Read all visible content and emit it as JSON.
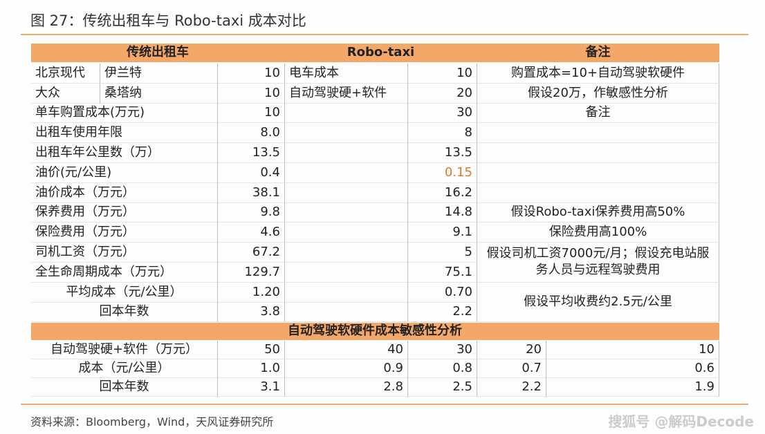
{
  "title": "图 27：传统出租车与 Robo-taxi 成本对比",
  "table": {
    "header": [
      "传统出租车",
      "Robo-taxi",
      "备注"
    ],
    "rows": [
      {
        "label": [
          "北京现代",
          "伊兰特"
        ],
        "traditional": "10",
        "robo_label": "电车成本",
        "robo": "10",
        "note": "购置成本=10+自动驾驶软硬件"
      },
      {
        "label": [
          "大众",
          "桑塔纳"
        ],
        "traditional": "10",
        "robo_label": "自动驾驶硬+软件",
        "robo": "20",
        "note": "假设20万，作敏感性分析"
      },
      {
        "label": "单车购置成本(万元)",
        "traditional": "10",
        "robo": "30",
        "note": "备注"
      },
      {
        "label": "出租车使用年限",
        "traditional": "8.0",
        "robo": "8"
      },
      {
        "label": "出租车年公里数（万）",
        "traditional": "13.5",
        "robo": "13.5"
      },
      {
        "label": "油价(元/公里)",
        "traditional": "0.4",
        "robo": "0.15",
        "robo_color": "#e07b2a"
      },
      {
        "label": "油价成本（万元）",
        "traditional": "38.1",
        "robo": "16.2"
      },
      {
        "label": "保养费用（万元）",
        "traditional": "9.8",
        "robo": "14.8",
        "note": "假设Robo-taxi保养费用高50%"
      },
      {
        "label": "保险费用（万元）",
        "traditional": "4.6",
        "robo": "9.1",
        "note": "保险费用高100%"
      },
      {
        "label": "司机工资（万元）",
        "traditional": "67.2",
        "robo": "5",
        "note": "假设司机工资7000元/月；假设充电站服务人员与远程驾驶费用"
      },
      {
        "label": "全生命周期成本（万元）",
        "traditional": "129.7",
        "robo": "75.1"
      },
      {
        "label": "平均成本（元/公里）",
        "traditional": "1.20",
        "robo": "0.70",
        "note": "假设平均收费约2.5元/公里"
      },
      {
        "label": "回本年数",
        "traditional": "3.8",
        "robo": "2.2"
      }
    ],
    "sensitivity_title": "自动驾驶软硬件成本敏感性分析",
    "sensitivity_rows": [
      {
        "label": "自动驾驶硬+软件（万元）",
        "values": [
          "50",
          "40",
          "30",
          "20",
          "10"
        ]
      },
      {
        "label": "成本（元/公里）",
        "values": [
          "1.0",
          "0.9",
          "0.8",
          "0.7",
          "0.6"
        ]
      },
      {
        "label": "回本年数",
        "values": [
          "3.1",
          "2.8",
          "2.5",
          "2.2",
          "1.9"
        ]
      }
    ]
  },
  "source": "资料来源：Bloomberg，Wind，天风证券研究所",
  "watermark": "搜狐号 @解码Decode"
}
